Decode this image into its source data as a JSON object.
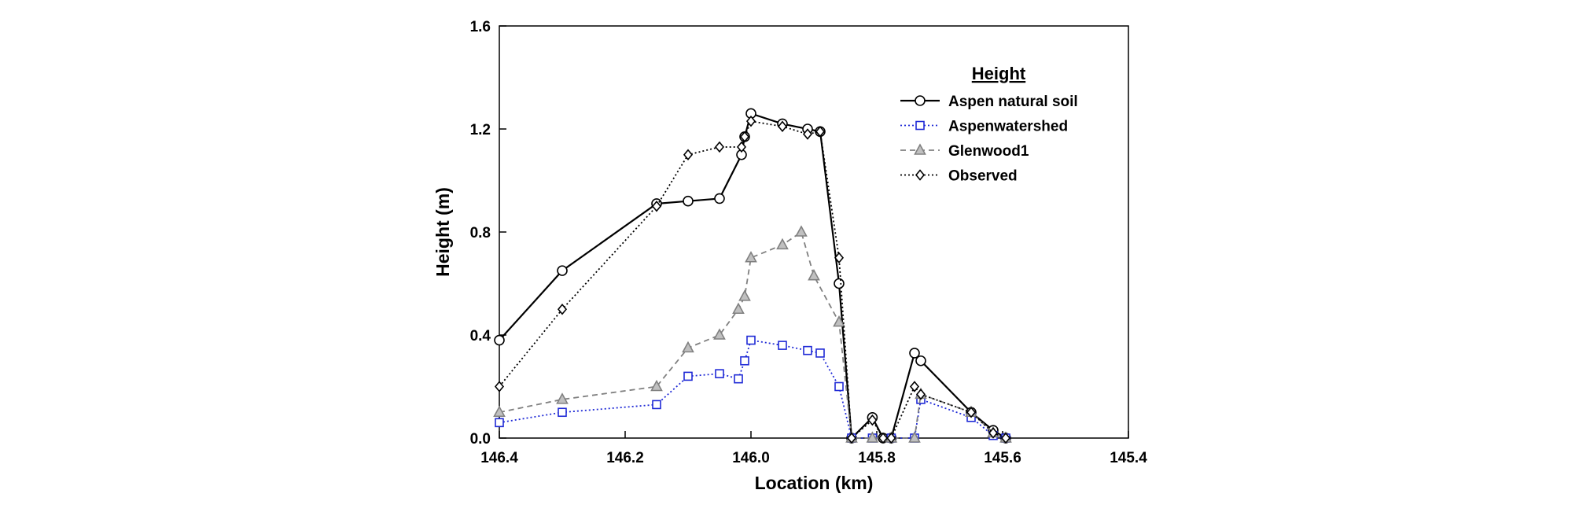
{
  "chart_data": {
    "type": "line",
    "title": "",
    "xlabel": "Location (km)",
    "ylabel": "Height (m)",
    "xlim": [
      146.4,
      145.4
    ],
    "ylim": [
      0,
      1.6
    ],
    "x_reversed": true,
    "x_ticks": [
      146.4,
      146.2,
      146.0,
      145.8,
      145.6,
      145.4
    ],
    "x_tick_labels": [
      "146.4",
      "146.2",
      "146.0",
      "145.8",
      "145.6",
      "145.4"
    ],
    "y_ticks": [
      0,
      0.4,
      0.8,
      1.2,
      1.6
    ],
    "y_tick_labels": [
      "0.0",
      "0.4",
      "0.8",
      "1.2",
      "1.6"
    ],
    "grid": false,
    "legend": {
      "title": "Height",
      "placement": "top-right"
    },
    "series": [
      {
        "name": "Aspen natural soil",
        "color": "#000000",
        "dash": "solid",
        "marker": "circle",
        "points": [
          [
            146.4,
            0.38
          ],
          [
            146.3,
            0.65
          ],
          [
            146.15,
            0.91
          ],
          [
            146.1,
            0.92
          ],
          [
            146.05,
            0.93
          ],
          [
            146.015,
            1.1
          ],
          [
            146.01,
            1.17
          ],
          [
            146.0,
            1.26
          ],
          [
            145.95,
            1.22
          ],
          [
            145.91,
            1.2
          ],
          [
            145.89,
            1.19
          ],
          [
            145.86,
            0.6
          ],
          [
            145.84,
            0.0
          ],
          [
            145.807,
            0.08
          ],
          [
            145.79,
            0.0
          ],
          [
            145.777,
            0.0
          ],
          [
            145.74,
            0.33
          ],
          [
            145.73,
            0.3
          ],
          [
            145.65,
            0.1
          ],
          [
            145.615,
            0.03
          ],
          [
            145.595,
            0.0
          ]
        ]
      },
      {
        "name": "Aspenwatershed",
        "color": "#1f2ad6",
        "dash": "dotted",
        "marker": "square",
        "points": [
          [
            146.4,
            0.06
          ],
          [
            146.3,
            0.1
          ],
          [
            146.15,
            0.13
          ],
          [
            146.1,
            0.24
          ],
          [
            146.05,
            0.25
          ],
          [
            146.02,
            0.23
          ],
          [
            146.01,
            0.3
          ],
          [
            146.0,
            0.38
          ],
          [
            145.95,
            0.36
          ],
          [
            145.91,
            0.34
          ],
          [
            145.89,
            0.33
          ],
          [
            145.86,
            0.2
          ],
          [
            145.84,
            0.0
          ],
          [
            145.807,
            0.0
          ],
          [
            145.777,
            0.0
          ],
          [
            145.74,
            0.0
          ],
          [
            145.73,
            0.15
          ],
          [
            145.65,
            0.08
          ],
          [
            145.615,
            0.01
          ],
          [
            145.595,
            0.0
          ]
        ]
      },
      {
        "name": "Glenwood1",
        "color": "#808080",
        "dash": "dashed",
        "marker": "triangle",
        "points": [
          [
            146.4,
            0.1
          ],
          [
            146.3,
            0.15
          ],
          [
            146.15,
            0.2
          ],
          [
            146.1,
            0.35
          ],
          [
            146.05,
            0.4
          ],
          [
            146.02,
            0.5
          ],
          [
            146.01,
            0.55
          ],
          [
            146.0,
            0.7
          ],
          [
            145.95,
            0.75
          ],
          [
            145.92,
            0.8
          ],
          [
            145.9,
            0.63
          ],
          [
            145.86,
            0.45
          ],
          [
            145.84,
            0.0
          ],
          [
            145.807,
            0.0
          ],
          [
            145.777,
            0.0
          ],
          [
            145.74,
            0.0
          ],
          [
            145.73,
            0.17
          ],
          [
            145.65,
            0.1
          ],
          [
            145.615,
            0.02
          ],
          [
            145.595,
            0.0
          ]
        ]
      },
      {
        "name": "Observed",
        "color": "#000000",
        "dash": "dotted",
        "marker": "diamond",
        "points": [
          [
            146.4,
            0.2
          ],
          [
            146.3,
            0.5
          ],
          [
            146.15,
            0.9
          ],
          [
            146.1,
            1.1
          ],
          [
            146.05,
            1.13
          ],
          [
            146.015,
            1.13
          ],
          [
            146.01,
            1.17
          ],
          [
            146.0,
            1.23
          ],
          [
            145.95,
            1.21
          ],
          [
            145.91,
            1.18
          ],
          [
            145.89,
            1.19
          ],
          [
            145.86,
            0.7
          ],
          [
            145.84,
            0.0
          ],
          [
            145.807,
            0.07
          ],
          [
            145.79,
            0.0
          ],
          [
            145.777,
            0.0
          ],
          [
            145.74,
            0.2
          ],
          [
            145.73,
            0.17
          ],
          [
            145.65,
            0.1
          ],
          [
            145.615,
            0.02
          ],
          [
            145.595,
            0.0
          ]
        ]
      }
    ]
  }
}
